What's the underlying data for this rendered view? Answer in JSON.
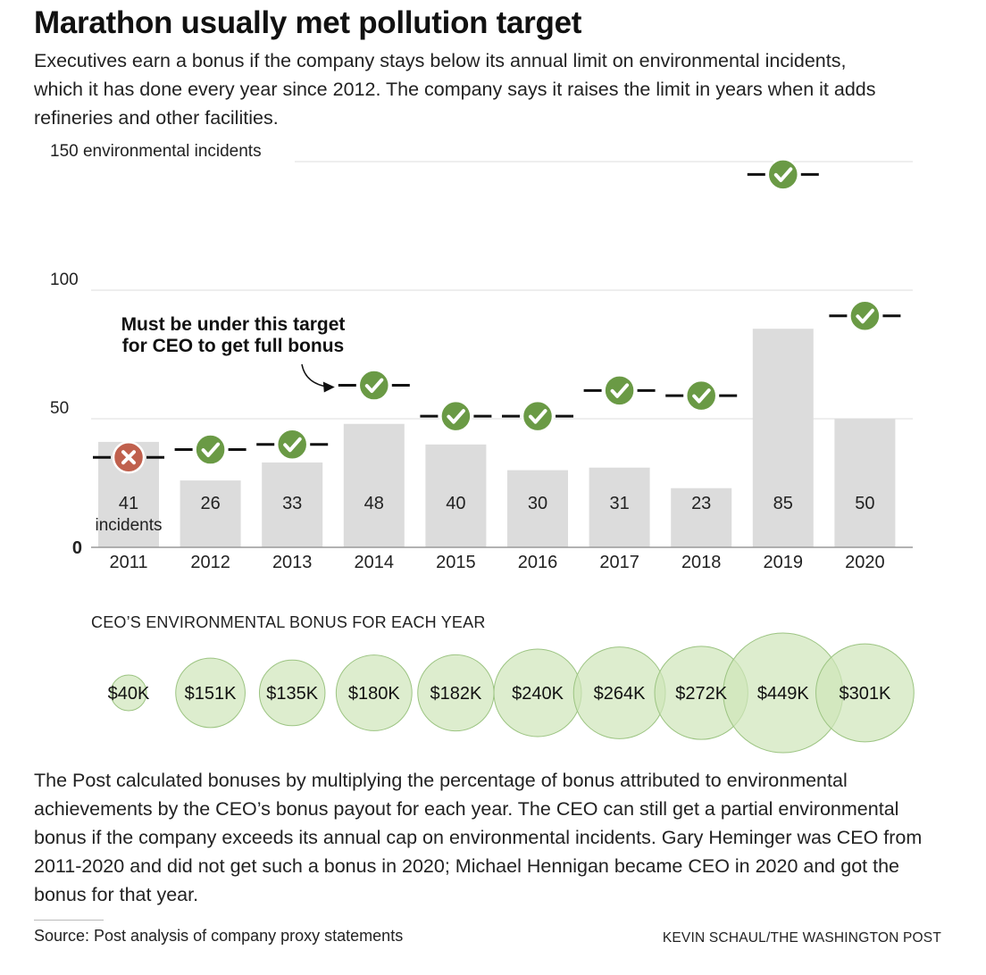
{
  "header": {
    "title": "Marathon usually met pollution target",
    "subtitle": "Executives earn a bonus if the company stays below its annual limit on environmental incidents, which it has done every year since 2012. The company says it raises the limit in years when it adds refineries and other facilities."
  },
  "chart_data": [
    {
      "type": "bar",
      "categories": [
        "2011",
        "2012",
        "2013",
        "2014",
        "2015",
        "2016",
        "2017",
        "2018",
        "2019",
        "2020"
      ],
      "values": [
        41,
        26,
        33,
        48,
        40,
        30,
        31,
        23,
        85,
        50
      ],
      "value_labels": [
        "41",
        "26",
        "33",
        "48",
        "40",
        "30",
        "31",
        "23",
        "85",
        "50"
      ],
      "first_value_unit": "incidents",
      "targets": [
        35,
        38,
        40,
        63,
        51,
        51,
        61,
        59,
        145,
        90
      ],
      "target_met": [
        false,
        true,
        true,
        true,
        true,
        true,
        true,
        true,
        true,
        true
      ],
      "ylim": [
        0,
        150
      ],
      "yticks": [
        {
          "value": 150,
          "label": "150 environmental incidents"
        },
        {
          "value": 100,
          "label": "100"
        },
        {
          "value": 50,
          "label": "50"
        },
        {
          "value": 0,
          "label": "0"
        }
      ],
      "grid": true,
      "annotation": {
        "lines": [
          "Must be under this target",
          "for CEO to get full bonus"
        ],
        "points_to": "2014"
      },
      "colors": {
        "bar": "#dcdcdc",
        "target": "#111111",
        "met": "#6a9a45",
        "missed": "#c0604d",
        "grid": "#dddddd"
      }
    },
    {
      "type": "bubble",
      "title": "CEO’S ENVIRONMENTAL BONUS FOR EACH YEAR",
      "categories": [
        "2011",
        "2012",
        "2013",
        "2014",
        "2015",
        "2016",
        "2017",
        "2018",
        "2019",
        "2020"
      ],
      "values": [
        40,
        151,
        135,
        180,
        182,
        240,
        264,
        272,
        449,
        301
      ],
      "labels": [
        "$40K",
        "$151K",
        "$135K",
        "$180K",
        "$182K",
        "$240K",
        "$264K",
        "$272K",
        "$449K",
        "$301K"
      ],
      "colors": {
        "fill": "#cfe6b9",
        "stroke": "#9cc482"
      }
    }
  ],
  "footer": {
    "note": "The Post calculated bonuses by multiplying the percentage of bonus attributed to environmental achievements by the CEO’s bonus payout for each year. The CEO can still get a partial environmental bonus if the company exceeds its annual cap on environmental incidents. Gary Heminger was CEO from 2011-2020 and did not get such a bonus in 2020; Michael Hennigan became CEO in 2020 and got the bonus for that year.",
    "source": "Source: Post analysis of company proxy statements",
    "credit": "KEVIN SCHAUL/THE WASHINGTON POST"
  }
}
